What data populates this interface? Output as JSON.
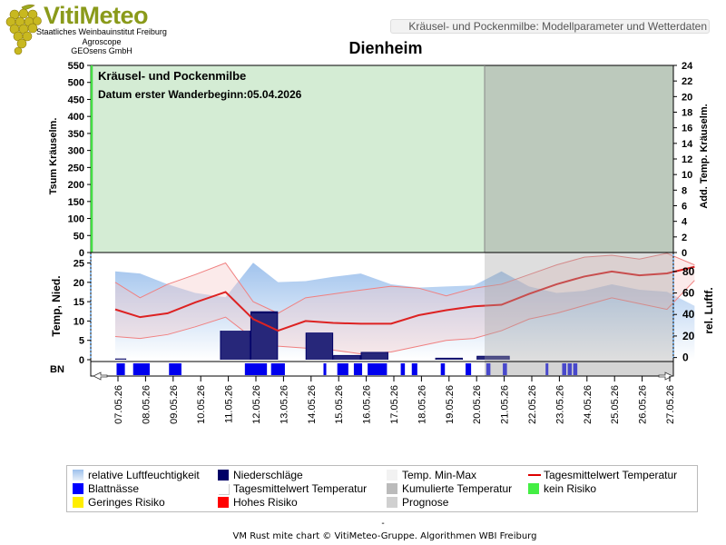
{
  "header": {
    "logo_title": "VitiMeteo",
    "logo_lines": [
      "Staatliches Weinbauinstitut Freiburg",
      "Agroscope",
      "GEOsens GmbH"
    ],
    "report_title": "Kräusel- und Pockenmilbe: Modellparameter und Wetterdaten",
    "location": "Dienheim"
  },
  "chart_data": [
    {
      "type": "area",
      "panel": "top",
      "annotation_title": "Kräusel- und Pockenmilbe",
      "annotation_date": "Datum  erster Wanderbeginn:05.04.2026",
      "ylabel_left": "Tsum Kräuselm.",
      "ylabel_right": "Add. Temp. Kräuselm.",
      "ylim_left": [
        0,
        550
      ],
      "yticks_left": [
        0,
        50,
        100,
        150,
        200,
        250,
        300,
        350,
        400,
        450,
        500,
        550
      ],
      "ylim_right": [
        0,
        24
      ],
      "yticks_right": [
        0,
        2,
        4,
        6,
        8,
        10,
        12,
        14,
        16,
        18,
        20,
        22,
        24
      ],
      "risk_background": "kein Risiko",
      "forecast_from": "21.05.26"
    },
    {
      "type": "line",
      "panel": "middle",
      "ylabel_left": "Temp, Nied.",
      "ylabel_right": "rel. Luftf.",
      "ylim_left": [
        0,
        27
      ],
      "yticks_left": [
        0,
        5,
        10,
        15,
        20,
        25
      ],
      "ylim_right": [
        -2,
        95
      ],
      "yticks_right": [
        0,
        20,
        40,
        60,
        80
      ],
      "x": [
        "07.05.26",
        "08.05.26",
        "09.05.26",
        "10.05.26",
        "11.05.26",
        "12.05.26",
        "13.05.26",
        "14.05.26",
        "15.05.26",
        "16.05.26",
        "17.05.26",
        "18.05.26",
        "19.05.26",
        "20.05.26",
        "21.05.26",
        "22.05.26",
        "23.05.26",
        "24.05.26",
        "25.05.26",
        "26.05.26",
        "27.05.26"
      ],
      "series": [
        {
          "name": "Tagesmittelwert Temperatur",
          "points": [
            [
              -0.1,
              13.0
            ],
            [
              0.8,
              11.0
            ],
            [
              1.8,
              12.0
            ],
            [
              2.8,
              14.8
            ],
            [
              3.9,
              17.5
            ],
            [
              4.9,
              10.5
            ],
            [
              5.8,
              7.5
            ],
            [
              6.8,
              10.0
            ],
            [
              7.8,
              9.5
            ],
            [
              8.8,
              9.3
            ],
            [
              9.9,
              9.3
            ],
            [
              10.9,
              11.5
            ],
            [
              11.9,
              12.8
            ],
            [
              12.9,
              13.8
            ],
            [
              13.9,
              14.2
            ],
            [
              14.9,
              17.0
            ],
            [
              15.9,
              19.5
            ],
            [
              16.9,
              21.5
            ],
            [
              17.9,
              22.8
            ],
            [
              18.9,
              21.8
            ],
            [
              19.9,
              22.3
            ],
            [
              20.9,
              24.0
            ]
          ]
        },
        {
          "name": "Temp. Min-Max max",
          "points": [
            [
              -0.1,
              20.0
            ],
            [
              0.8,
              16.0
            ],
            [
              1.8,
              19.5
            ],
            [
              2.8,
              22.0
            ],
            [
              3.9,
              25.0
            ],
            [
              4.9,
              15.0
            ],
            [
              5.8,
              12.0
            ],
            [
              6.8,
              16.0
            ],
            [
              7.8,
              17.0
            ],
            [
              8.8,
              18.0
            ],
            [
              9.9,
              19.0
            ],
            [
              10.9,
              18.5
            ],
            [
              11.9,
              16.5
            ],
            [
              12.9,
              18.5
            ],
            [
              13.9,
              19.5
            ],
            [
              14.9,
              22.0
            ],
            [
              15.9,
              24.5
            ],
            [
              16.9,
              26.5
            ],
            [
              17.9,
              27.0
            ],
            [
              18.9,
              26.0
            ],
            [
              19.9,
              27.5
            ],
            [
              20.9,
              24.5
            ]
          ]
        },
        {
          "name": "Temp. Min-Max min",
          "points": [
            [
              -0.1,
              6.0
            ],
            [
              0.8,
              5.5
            ],
            [
              1.8,
              6.5
            ],
            [
              2.8,
              8.5
            ],
            [
              3.9,
              11.0
            ],
            [
              4.9,
              5.5
            ],
            [
              5.8,
              3.5
            ],
            [
              6.8,
              3.0
            ],
            [
              7.8,
              2.5
            ],
            [
              8.8,
              1.5
            ],
            [
              9.9,
              2.0
            ],
            [
              10.9,
              3.5
            ],
            [
              11.9,
              5.0
            ],
            [
              12.9,
              5.5
            ],
            [
              13.9,
              7.5
            ],
            [
              14.9,
              10.5
            ],
            [
              15.9,
              12.0
            ],
            [
              16.9,
              14.0
            ],
            [
              17.9,
              16.0
            ],
            [
              18.9,
              14.5
            ],
            [
              19.9,
              13.0
            ],
            [
              20.9,
              20.5
            ]
          ]
        },
        {
          "name": "relative Luftfeuchtigkeit",
          "points": [
            [
              -0.1,
              80.0
            ],
            [
              0.8,
              78.0
            ],
            [
              1.8,
              68.0
            ],
            [
              2.8,
              60.0
            ],
            [
              3.9,
              56.0
            ],
            [
              4.9,
              88.0
            ],
            [
              5.8,
              70.0
            ],
            [
              6.8,
              71.0
            ],
            [
              7.8,
              75.0
            ],
            [
              8.8,
              78.0
            ],
            [
              9.9,
              68.0
            ],
            [
              10.9,
              65.0
            ],
            [
              11.9,
              66.0
            ],
            [
              12.9,
              67.0
            ],
            [
              13.9,
              80.0
            ],
            [
              14.9,
              66.0
            ],
            [
              15.9,
              60.0
            ],
            [
              16.9,
              62.0
            ],
            [
              17.9,
              68.0
            ],
            [
              18.9,
              63.0
            ],
            [
              19.9,
              61.0
            ],
            [
              20.9,
              48.0
            ]
          ]
        },
        {
          "name": "Niederschläge",
          "bars": [
            [
              -0.1,
              0.3,
              0.3
            ],
            [
              3.7,
              4.8,
              7.5
            ],
            [
              4.8,
              5.8,
              12.5
            ],
            [
              6.8,
              7.8,
              7.0
            ],
            [
              7.8,
              8.8,
              1.2
            ],
            [
              8.8,
              9.8,
              2.0
            ],
            [
              11.5,
              12.5,
              0.5
            ],
            [
              13.0,
              14.2,
              1.0
            ]
          ]
        },
        {
          "name": "Kumulierte Temperatur",
          "bars": [
            [
              -0.1,
              0.3,
              0.3
            ],
            [
              3.7,
              4.8,
              7.5
            ],
            [
              4.8,
              5.8,
              12.0
            ],
            [
              6.8,
              7.8,
              6.8
            ],
            [
              7.8,
              8.8,
              1.0
            ],
            [
              8.8,
              9.8,
              1.8
            ],
            [
              11.5,
              12.5,
              0.3
            ],
            [
              13.0,
              14.2,
              0.8
            ]
          ]
        }
      ]
    },
    {
      "type": "bar",
      "panel": "bottom",
      "ylabel": "BN",
      "series": [
        {
          "name": "Blattnässe",
          "intervals": [
            [
              -0.05,
              0.25
            ],
            [
              0.55,
              1.15
            ],
            [
              1.85,
              2.3
            ],
            [
              4.6,
              5.4
            ],
            [
              5.55,
              6.05
            ],
            [
              7.45,
              7.55
            ],
            [
              7.95,
              8.35
            ],
            [
              8.55,
              8.85
            ],
            [
              9.05,
              9.75
            ],
            [
              10.25,
              10.4
            ],
            [
              10.65,
              10.85
            ],
            [
              11.7,
              11.85
            ],
            [
              12.6,
              12.8
            ],
            [
              13.35,
              13.5
            ],
            [
              13.95,
              14.1
            ],
            [
              15.5,
              15.6
            ],
            [
              16.1,
              16.25
            ],
            [
              16.3,
              16.45
            ],
            [
              16.5,
              16.65
            ]
          ]
        }
      ]
    }
  ],
  "legend": [
    {
      "label": "relative Luftfeuchtigkeit",
      "color": "#b8d3f0",
      "style": "gradient"
    },
    {
      "label": "Niederschläge",
      "color": "#000066",
      "style": "fill"
    },
    {
      "label": "Temp. Min-Max",
      "color": "#f2f2f2",
      "style": "fill"
    },
    {
      "label": "Tagesmittelwert Temperatur",
      "color": "#dd0000",
      "style": "line"
    },
    {
      "label": "Blattnässe",
      "color": "#0000ff",
      "style": "fill"
    },
    {
      "label": "Tagesmittelwert Temperatur",
      "color": "#ffffff",
      "style": "outline"
    },
    {
      "label": "Kumulierte Temperatur",
      "color": "#bbbbbb",
      "style": "fill"
    },
    {
      "label": "kein Risiko",
      "color": "#44ee44",
      "style": "fill"
    },
    {
      "label": "Geringes Risiko",
      "color": "#ffee00",
      "style": "fill"
    },
    {
      "label": "Hohes Risiko",
      "color": "#ff0000",
      "style": "fill"
    },
    {
      "label": "Prognose",
      "color": "#d0d0d0",
      "style": "fill"
    }
  ],
  "footer": {
    "dash": "-",
    "text": "VM Rust mite chart © VitiMeteo-Gruppe. Algorithmen WBI Freiburg"
  },
  "colors": {
    "no_risk_bg": "#d4ecd4",
    "no_risk_line": "#44dd44",
    "forecast_overlay": "#a0a0a0",
    "temp_line": "#dd2222",
    "minmax_line": "#f08080",
    "humidity": "#a8c8ee",
    "precip": "#000066",
    "leafwet": "#0000ee"
  }
}
